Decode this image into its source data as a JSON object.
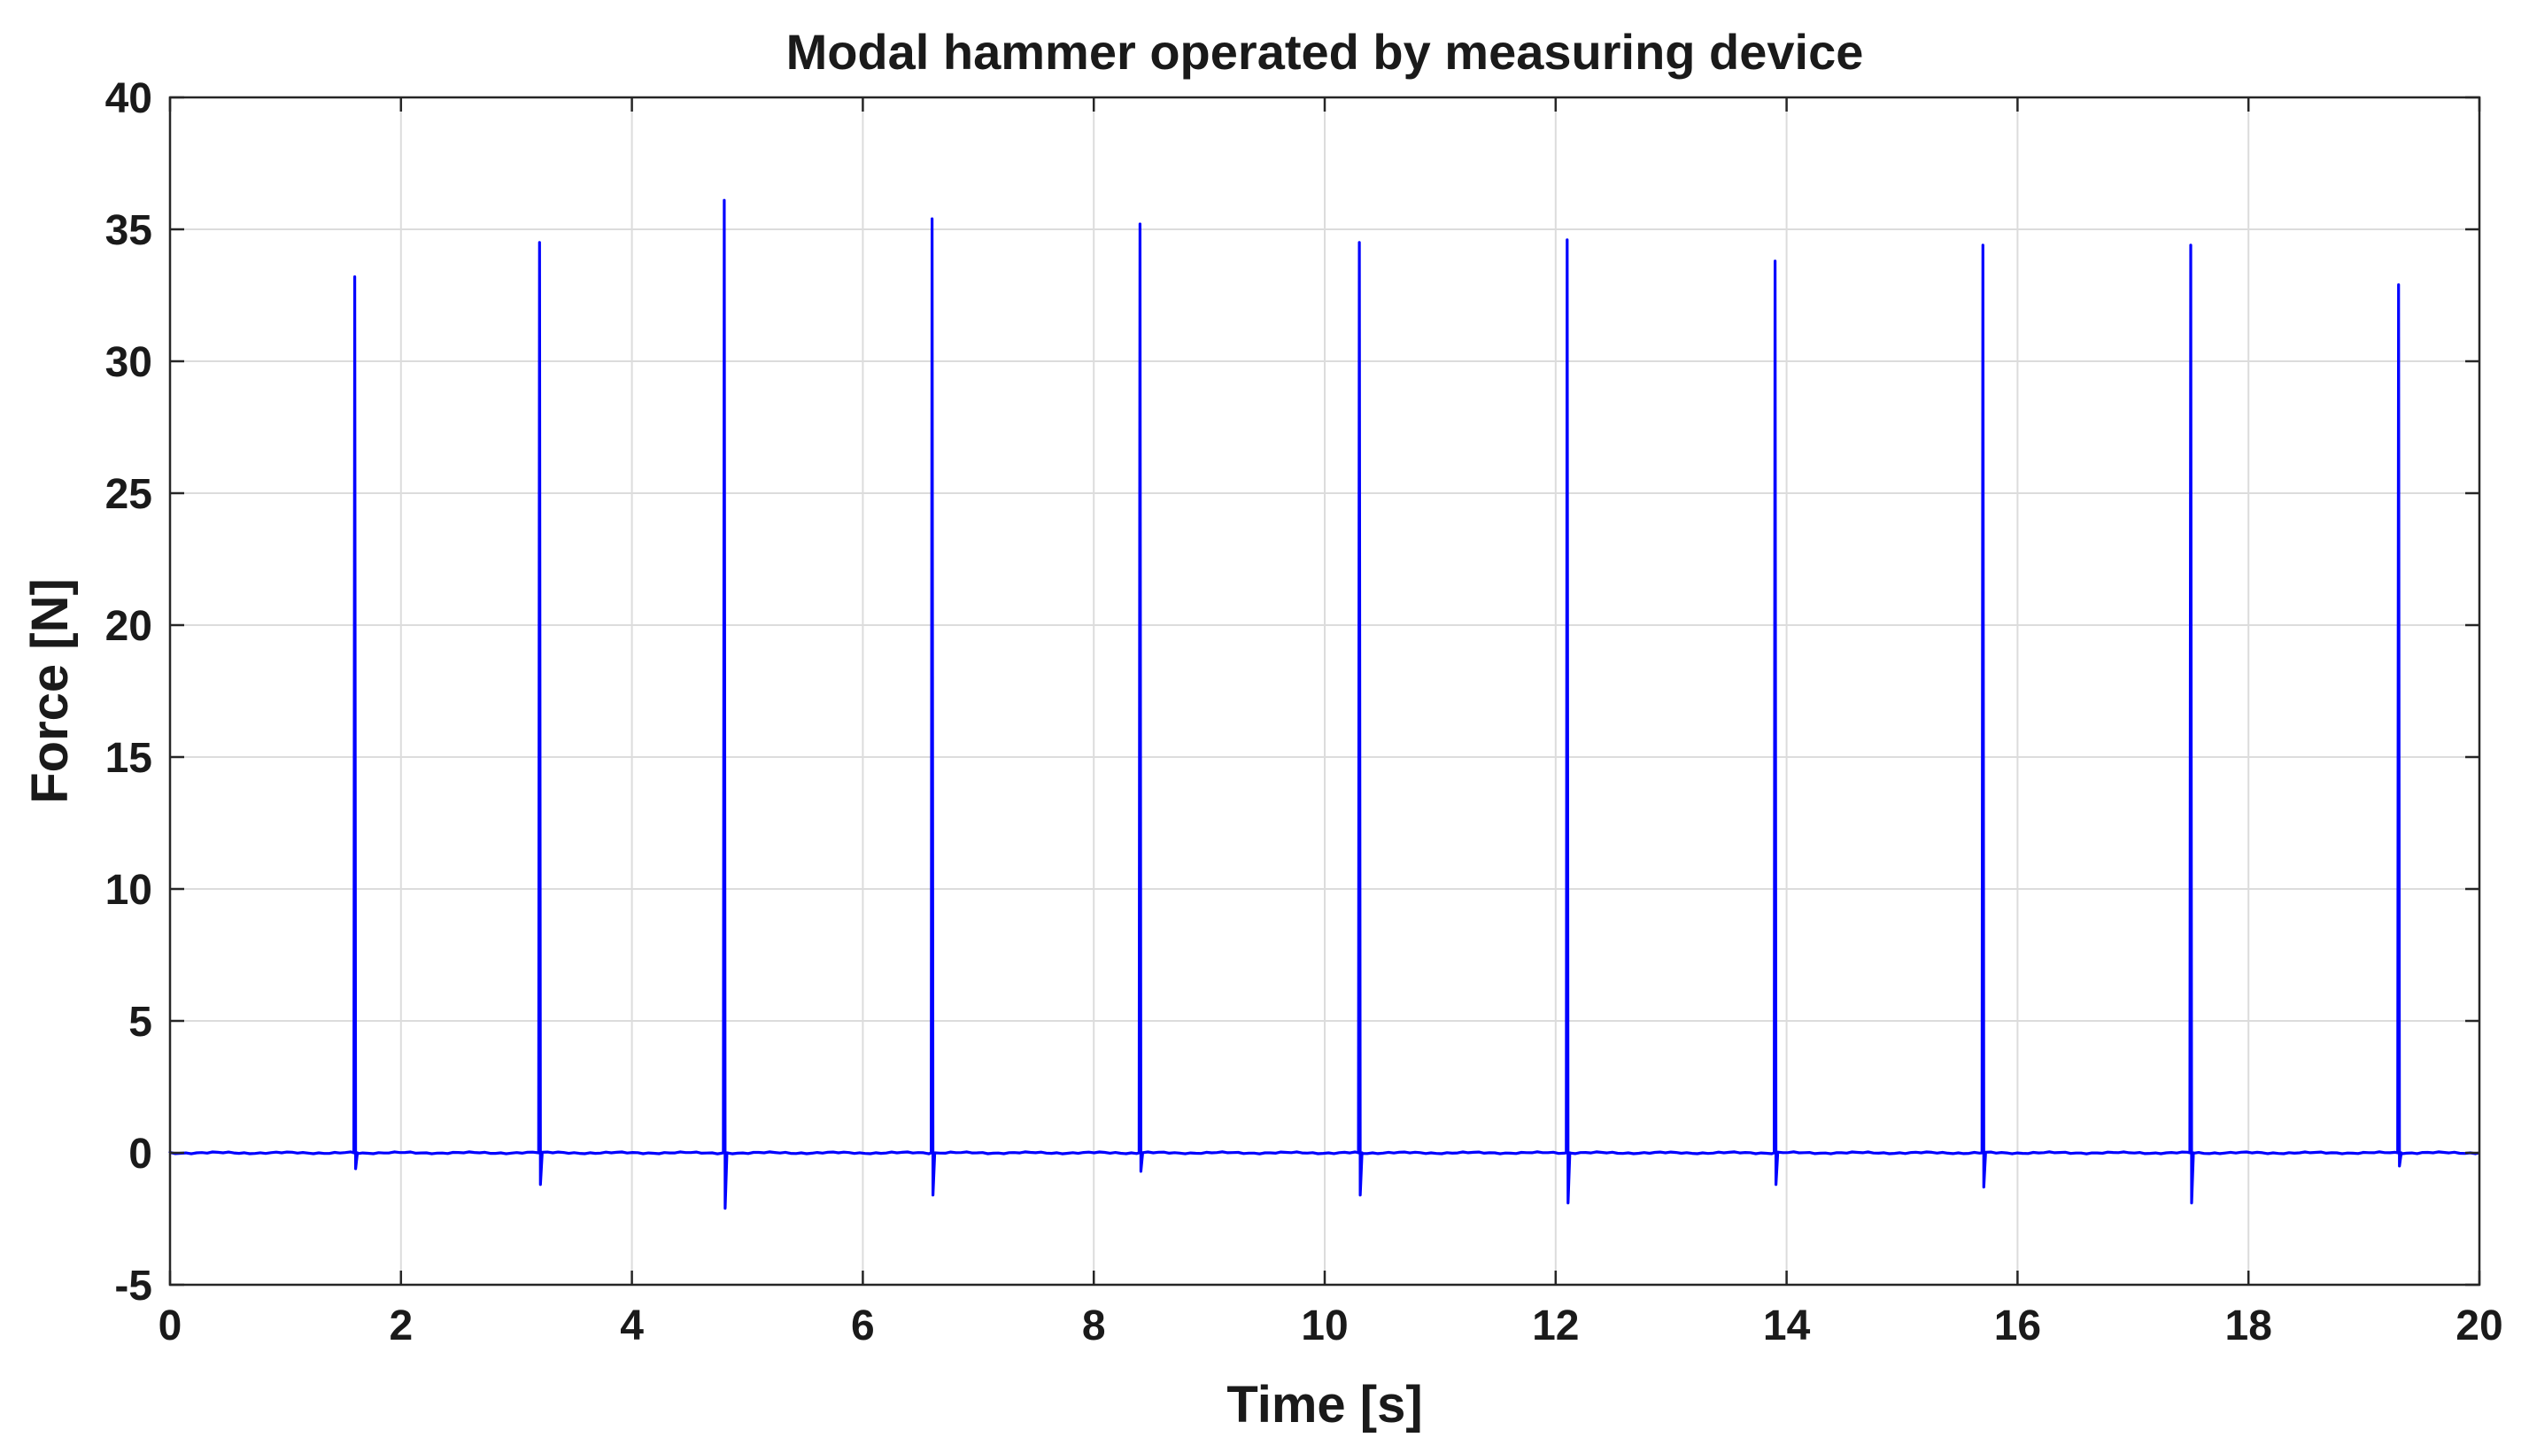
{
  "chart_data": {
    "type": "line",
    "title": "Modal hammer operated by measuring device",
    "xlabel": "Time [s]",
    "ylabel": "Force [N]",
    "xlim": [
      0,
      20
    ],
    "ylim": [
      -5,
      40
    ],
    "xticks": [
      0,
      2,
      4,
      6,
      8,
      10,
      12,
      14,
      16,
      18,
      20
    ],
    "yticks": [
      -5,
      0,
      5,
      10,
      15,
      20,
      25,
      30,
      35,
      40
    ],
    "xtick_labels": [
      "0",
      "2",
      "4",
      "6",
      "8",
      "10",
      "12",
      "14",
      "16",
      "18",
      "20"
    ],
    "ytick_labels": [
      "-5",
      "0",
      "5",
      "10",
      "15",
      "20",
      "25",
      "30",
      "35",
      "40"
    ],
    "grid": true,
    "line_color": "#0000ff",
    "baseline": 0,
    "impacts": [
      {
        "t": 1.6,
        "peak": 33.2,
        "min": -0.6
      },
      {
        "t": 3.2,
        "peak": 34.5,
        "min": -1.2
      },
      {
        "t": 4.8,
        "peak": 36.1,
        "min": -2.1
      },
      {
        "t": 6.6,
        "peak": 35.4,
        "min": -1.6
      },
      {
        "t": 8.4,
        "peak": 35.2,
        "min": -0.7
      },
      {
        "t": 10.3,
        "peak": 34.5,
        "min": -1.6
      },
      {
        "t": 12.1,
        "peak": 34.6,
        "min": -1.9
      },
      {
        "t": 13.9,
        "peak": 33.8,
        "min": -1.2
      },
      {
        "t": 15.7,
        "peak": 34.4,
        "min": -1.3
      },
      {
        "t": 17.5,
        "peak": 34.4,
        "min": -1.9
      },
      {
        "t": 19.3,
        "peak": 32.9,
        "min": -0.5
      }
    ]
  }
}
